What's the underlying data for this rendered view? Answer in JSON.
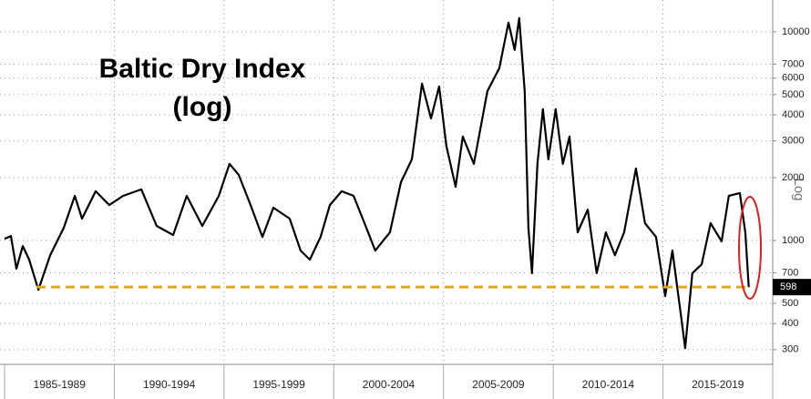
{
  "chart_data": {
    "type": "line",
    "title": "Baltic Dry Index",
    "subtitle": "(log)",
    "y_label": "Log",
    "log_scale": true,
    "grid": true,
    "xlim": [
      1985,
      2020
    ],
    "ylim": [
      255,
      14200
    ],
    "xticks": [
      {
        "value": 1987.5,
        "label": "1985-1989"
      },
      {
        "value": 1992.5,
        "label": "1990-1994"
      },
      {
        "value": 1997.5,
        "label": "1995-1999"
      },
      {
        "value": 2002.5,
        "label": "2000-2004"
      },
      {
        "value": 2007.5,
        "label": "2005-2009"
      },
      {
        "value": 2012.5,
        "label": "2010-2014"
      },
      {
        "value": 2017.5,
        "label": "2015-2019"
      }
    ],
    "yticks": [
      300,
      400,
      500,
      700,
      1000,
      2000,
      3000,
      4000,
      5000,
      6000,
      7000,
      10000
    ],
    "series": [
      {
        "name": "Baltic Dry Index",
        "color": "#000000",
        "x": [
          1985.0,
          1985.29,
          1985.54,
          1985.83,
          1986.12,
          1986.54,
          1987.08,
          1987.7,
          1988.2,
          1988.53,
          1989.15,
          1989.77,
          1990.4,
          1991.23,
          1991.93,
          1992.68,
          1993.3,
          1994.01,
          1994.76,
          1995.25,
          1995.67,
          1996.21,
          1996.75,
          1997.25,
          1997.99,
          1998.49,
          1998.91,
          1999.4,
          1999.82,
          2000.36,
          2000.9,
          2001.4,
          2001.89,
          2002.56,
          2003.06,
          2003.56,
          2004.02,
          2004.43,
          2004.8,
          2005.13,
          2005.55,
          2005.88,
          2006.38,
          2007.0,
          2007.54,
          2007.96,
          2008.24,
          2008.45,
          2008.7,
          2008.87,
          2009.03,
          2009.28,
          2009.53,
          2009.78,
          2010.11,
          2010.44,
          2010.74,
          2011.11,
          2011.57,
          2011.98,
          2012.4,
          2012.81,
          2013.23,
          2013.77,
          2014.18,
          2014.68,
          2015.1,
          2015.43,
          2015.84,
          2016.01,
          2016.34,
          2016.76,
          2017.17,
          2017.67,
          2018.0,
          2018.5,
          2018.75,
          2018.91
        ],
        "values": [
          1020,
          1050,
          733,
          941,
          810,
          581,
          851,
          1151,
          1637,
          1273,
          1722,
          1479,
          1637,
          1757,
          1175,
          1062,
          1637,
          1175,
          1637,
          2328,
          2062,
          1479,
          1040,
          1436,
          1273,
          895,
          810,
          1040,
          1479,
          1722,
          1637,
          1211,
          895,
          1094,
          1903,
          2449,
          5637,
          3846,
          5470,
          2844,
          1810,
          3148,
          2328,
          5200,
          6683,
          11070,
          8185,
          11640,
          5200,
          1151,
          697,
          2328,
          4256,
          2449,
          4256,
          2328,
          3148,
          1094,
          1406,
          697,
          1094,
          851,
          1094,
          2213,
          1211,
          1040,
          542,
          895,
          421,
          305,
          697,
          769,
          1211,
          990,
          1637,
          1688,
          1094,
          598
        ]
      }
    ]
  }
}
